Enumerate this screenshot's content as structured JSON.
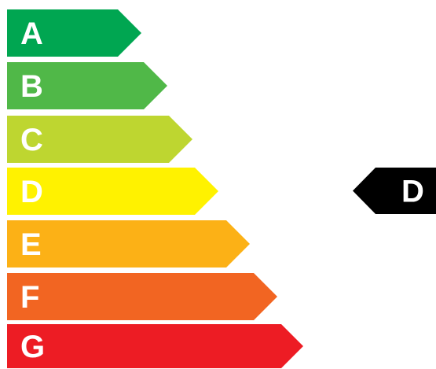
{
  "energy_scale": {
    "bars": [
      {
        "label": "A",
        "color": "#00a651"
      },
      {
        "label": "B",
        "color": "#50b848"
      },
      {
        "label": "C",
        "color": "#bed630"
      },
      {
        "label": "D",
        "color": "#fff200"
      },
      {
        "label": "E",
        "color": "#fcb116"
      },
      {
        "label": "F",
        "color": "#f26522"
      },
      {
        "label": "G",
        "color": "#ed1c24"
      }
    ],
    "indicator": {
      "label": "D",
      "color": "#000000"
    }
  }
}
